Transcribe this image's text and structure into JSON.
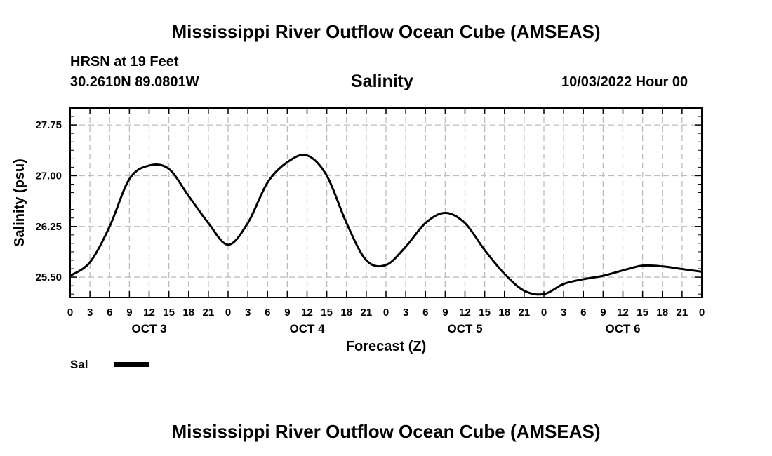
{
  "header": {
    "title_top": "Mississippi River Outflow Ocean Cube (AMSEAS)",
    "station": "HRSN at 19 Feet",
    "location": "30.2610N  89.0801W",
    "subtitle": "Salinity",
    "datetime": "10/03/2022 Hour 00",
    "title_bottom": "Mississippi River Outflow Ocean Cube (AMSEAS)"
  },
  "legend": {
    "label": "Sal",
    "color": "#000000"
  },
  "chart_data": {
    "type": "line",
    "title": "Salinity",
    "xlabel": "Forecast (Z)",
    "ylabel": "Salinity (psu)",
    "xlim": [
      0,
      96
    ],
    "ylim": [
      25.2,
      28.0
    ],
    "yticks": [
      25.5,
      26.25,
      27.0,
      27.75
    ],
    "ytick_labels": [
      "25.50",
      "26.25",
      "27.00",
      "27.75"
    ],
    "xtick_hours": [
      0,
      3,
      6,
      9,
      12,
      15,
      18,
      21,
      24,
      27,
      30,
      33,
      36,
      39,
      42,
      45,
      48,
      51,
      54,
      57,
      60,
      63,
      66,
      69,
      72,
      75,
      78,
      81,
      84,
      87,
      90,
      93,
      96
    ],
    "xtick_labels": [
      "0",
      "3",
      "6",
      "9",
      "12",
      "15",
      "18",
      "21",
      "0",
      "3",
      "6",
      "9",
      "12",
      "15",
      "18",
      "21",
      "0",
      "3",
      "6",
      "9",
      "12",
      "15",
      "18",
      "21",
      "0",
      "3",
      "6",
      "9",
      "12",
      "15",
      "18",
      "21",
      "0"
    ],
    "day_labels": [
      {
        "label": "OCT 3",
        "hour": 12
      },
      {
        "label": "OCT 4",
        "hour": 36
      },
      {
        "label": "OCT 5",
        "hour": 60
      },
      {
        "label": "OCT 6",
        "hour": 84
      }
    ],
    "grid": true,
    "series": [
      {
        "name": "Sal",
        "x": [
          0,
          3,
          6,
          9,
          12,
          15,
          18,
          21,
          24,
          27,
          30,
          33,
          36,
          39,
          42,
          45,
          48,
          51,
          54,
          57,
          60,
          63,
          66,
          69,
          72,
          75,
          78,
          81,
          84,
          87,
          90,
          93,
          96
        ],
        "values": [
          25.52,
          25.72,
          26.25,
          26.95,
          27.15,
          27.1,
          26.7,
          26.3,
          25.98,
          26.3,
          26.9,
          27.2,
          27.3,
          27.0,
          26.3,
          25.75,
          25.68,
          25.95,
          26.3,
          26.45,
          26.3,
          25.9,
          25.55,
          25.3,
          25.25,
          25.4,
          25.47,
          25.52,
          25.6,
          25.67,
          25.66,
          25.62,
          25.58
        ]
      }
    ]
  }
}
